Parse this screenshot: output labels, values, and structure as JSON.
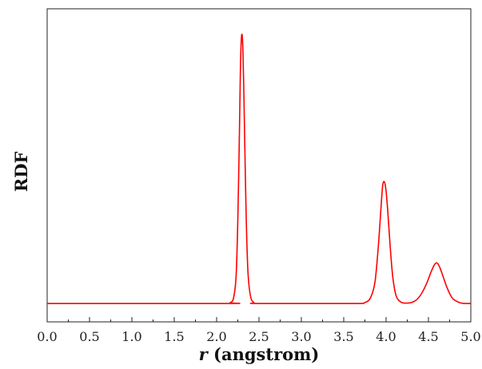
{
  "chart_data": {
    "type": "line",
    "xlabel_var": "r",
    "xlabel_rest": " (angstrom)",
    "ylabel": "RDF",
    "xlim": [
      0.0,
      5.0
    ],
    "ylim": [
      -0.1,
      1.6
    ],
    "grid": false,
    "legend": "none",
    "x_ticks": [
      "0.0",
      "0.5",
      "1.0",
      "1.5",
      "2.0",
      "2.5",
      "3.0",
      "3.5",
      "4.0",
      "4.5",
      "5.0"
    ],
    "series": [
      {
        "color": "#ff0000",
        "x": [
          0.0,
          2.1,
          2.16,
          2.2,
          2.23,
          2.25,
          2.27,
          2.28,
          2.29,
          2.3,
          2.31,
          2.32,
          2.33,
          2.35,
          2.37,
          2.4,
          2.44,
          2.5,
          3.6,
          3.75,
          3.82,
          3.87,
          3.91,
          3.94,
          3.96,
          3.98,
          4.0,
          4.02,
          4.05,
          4.08,
          4.12,
          4.18,
          4.25,
          4.3,
          4.36,
          4.42,
          4.48,
          4.53,
          4.57,
          4.6,
          4.63,
          4.67,
          4.72,
          4.78,
          4.85,
          4.92,
          5.0
        ],
        "y": [
          0.0,
          0.0,
          0.005,
          0.03,
          0.15,
          0.45,
          0.95,
          1.25,
          1.42,
          1.46,
          1.38,
          1.18,
          0.92,
          0.45,
          0.17,
          0.04,
          0.005,
          0.0,
          0.0,
          0.005,
          0.035,
          0.12,
          0.32,
          0.52,
          0.64,
          0.66,
          0.61,
          0.5,
          0.3,
          0.14,
          0.04,
          0.006,
          0.002,
          0.005,
          0.02,
          0.055,
          0.11,
          0.17,
          0.21,
          0.22,
          0.2,
          0.15,
          0.085,
          0.03,
          0.008,
          0.0,
          0.0
        ]
      }
    ]
  }
}
